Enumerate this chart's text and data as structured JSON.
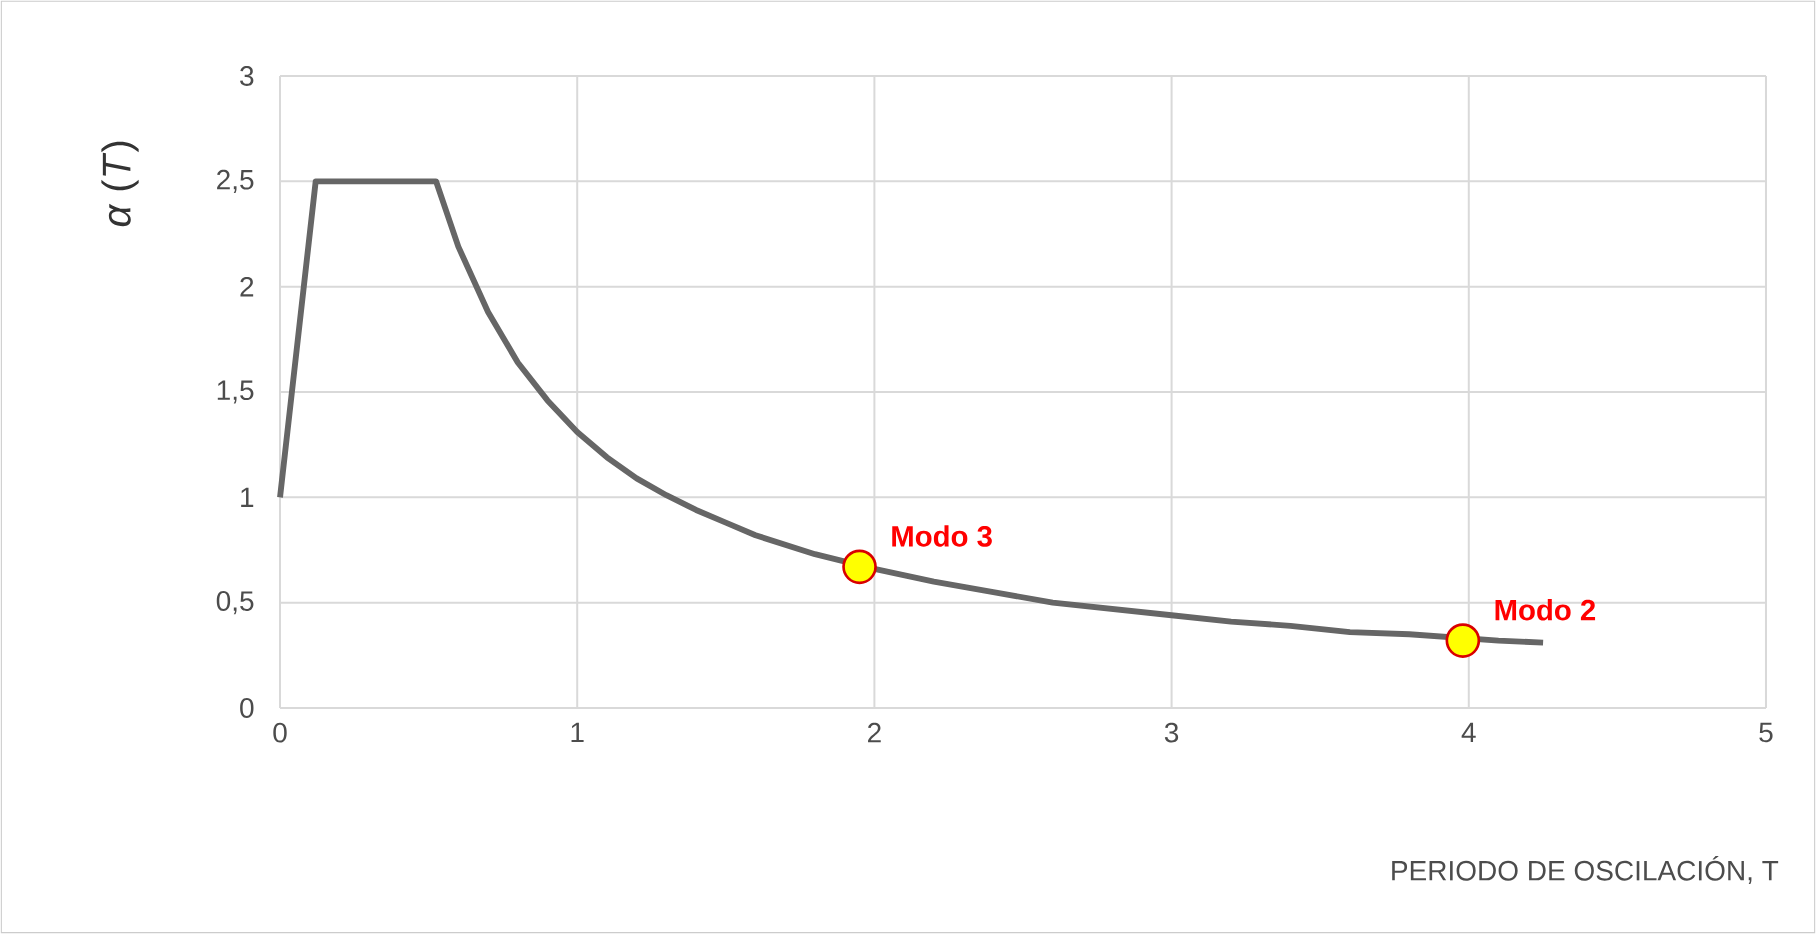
{
  "chart_data": {
    "type": "line",
    "xlabel": "PERIODO DE OSCILACIÓN, T",
    "ylabel": "*α* (*T*)",
    "xlim": [
      0,
      5
    ],
    "xticks": [
      0,
      1,
      2,
      3,
      4,
      5
    ],
    "ylim": [
      0,
      3
    ],
    "yticks": [
      0,
      {
        "value": 0.5,
        "label": "0,5"
      },
      1,
      {
        "value": 1.5,
        "label": "1,5"
      },
      2,
      {
        "value": 2.5,
        "label": "2,5"
      },
      3
    ],
    "grid": true,
    "series": [
      {
        "color": "#666666",
        "marker": "none",
        "line_style": "solid",
        "x": [
          0,
          0.12,
          0.525,
          0.6,
          0.7,
          0.8,
          0.9,
          1.0,
          1.1,
          1.2,
          1.3,
          1.4,
          1.5,
          1.6,
          1.8,
          2.0,
          2.2,
          2.4,
          2.6,
          2.8,
          3.0,
          3.2,
          3.4,
          3.6,
          3.8,
          4.1,
          4.25
        ],
        "values": [
          1,
          2.5,
          2.5,
          2.19,
          1.88,
          1.64,
          1.46,
          1.31,
          1.19,
          1.09,
          1.01,
          0.94,
          0.88,
          0.82,
          0.73,
          0.66,
          0.6,
          0.55,
          0.5,
          0.47,
          0.44,
          0.41,
          0.39,
          0.36,
          0.35,
          0.32,
          0.31
        ]
      },
      {
        "type": "scatter",
        "color": "#ffff00",
        "marker": "circle",
        "x": [
          1.95,
          3.98
        ],
        "values": [
          0.67,
          0.32
        ]
      }
    ],
    "annotations": [
      {
        "text": "**Modo 3**",
        "x": 1.95,
        "y": 0.67
      },
      {
        "text": "**Modo 2**",
        "x": 3.98,
        "y": 0.32
      }
    ]
  }
}
